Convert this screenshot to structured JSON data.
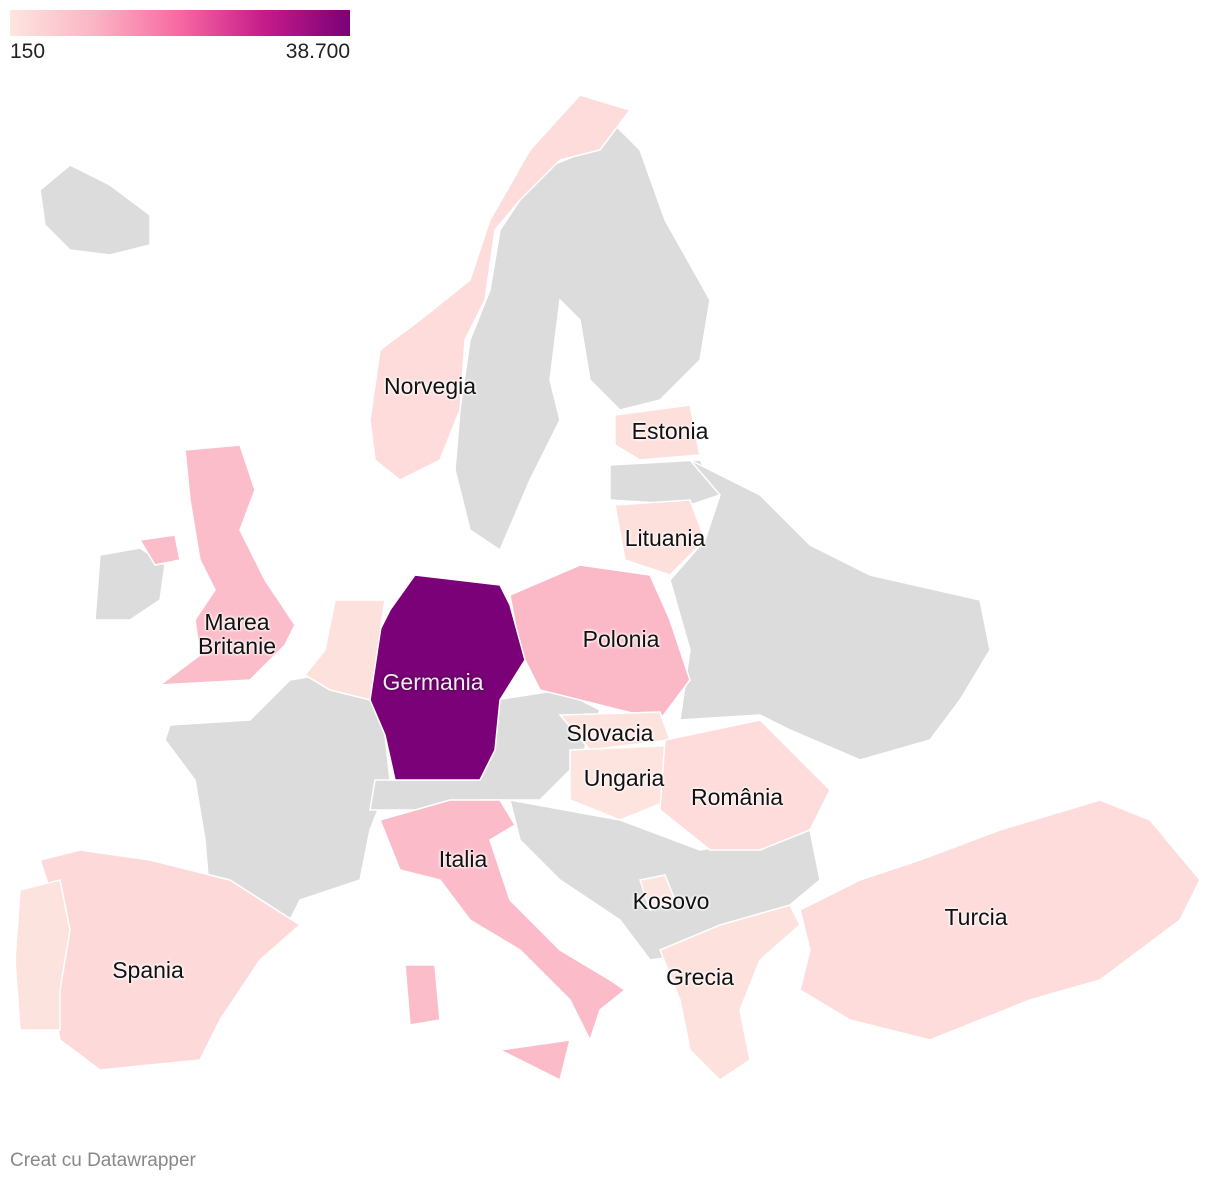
{
  "map_data": {
    "legend": {
      "min": 150,
      "max": {
        "value": 38700,
        "label": "38.700"
      },
      "colors": [
        "#fde6e0",
        "#fbb4c4",
        "#f768a1",
        "#c51b8a",
        "#7a0177"
      ],
      "missing_color": "#dcdcdc"
    },
    "regions": [
      {
        "name": "Norvegia",
        "value": 2000
      },
      {
        "name": "Estonia",
        "value": 1500
      },
      {
        "name": "Lituania",
        "value": 1500
      },
      {
        "name": "Marea Britanie",
        "value": 8000
      },
      {
        "name": "Polonia",
        "value": 9000
      },
      {
        "name": "Germania",
        "value": 38700
      },
      {
        "name": "Slovacia",
        "value": 800
      },
      {
        "name": "Ungaria",
        "value": 600
      },
      {
        "name": "România",
        "value": 2000
      },
      {
        "name": "Italia",
        "value": 8500
      },
      {
        "name": "Kosovo",
        "value": 400
      },
      {
        "name": "Spania",
        "value": 2500
      },
      {
        "name": "Grecia",
        "value": 1200
      },
      {
        "name": "Turcia",
        "value": 2000
      },
      {
        "name": null,
        "value": 800
      },
      {
        "name": null,
        "value": 1200
      },
      {
        "name": null,
        "value": 8000
      }
    ],
    "footer": "Creat cu Datawrapper"
  }
}
